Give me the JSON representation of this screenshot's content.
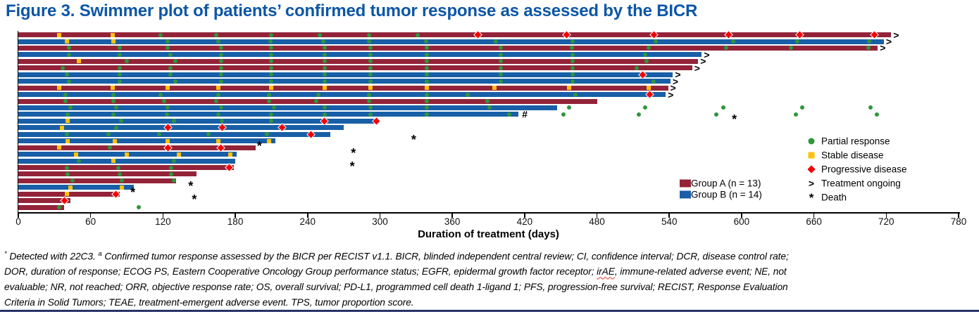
{
  "title": "Figure 3. Swimmer plot of patients’ confirmed tumor response as assessed by the BICR",
  "colors": {
    "title": "#0C56A6",
    "group_a": "#932339",
    "group_b": "#185FA7",
    "partial_response": "#2F963C",
    "stable_disease": "#FFC20E",
    "progressive_disease": "#F40000",
    "axis": "#000000",
    "bottom_rule": "#27316B"
  },
  "symbols": {
    "ongoing": ">",
    "death": "*",
    "hash": "#"
  },
  "legend": {
    "groups": [
      {
        "label": "Group A (n = 13)",
        "color_key": "group_a"
      },
      {
        "label": "Group B (n = 14)",
        "color_key": "group_b"
      }
    ],
    "markers": [
      {
        "label": "Partial response",
        "symbol": "circle"
      },
      {
        "label": "Stable disease",
        "symbol": "square"
      },
      {
        "label": "Progressive disease",
        "symbol": "diamond"
      },
      {
        "label": "Treatment ongoing",
        "symbol": "text",
        "glyph": ">"
      },
      {
        "label": "Death",
        "symbol": "text",
        "glyph": "*"
      }
    ]
  },
  "chart_data": {
    "type": "swimmer-bar",
    "xlabel": "Duration of treatment (days)",
    "xlim": [
      0,
      780
    ],
    "xticks": [
      0,
      60,
      120,
      180,
      240,
      300,
      360,
      420,
      480,
      540,
      600,
      660,
      720,
      780
    ],
    "marker_types": {
      "pr": "partial response (green circle)",
      "sd": "stable disease (yellow square)",
      "pd": "progressive disease (red diamond)"
    },
    "patients": [
      {
        "group": "A",
        "end": 724,
        "ongoing": true,
        "sd": [
          34,
          78
        ],
        "pr": [
          118,
          164,
          210,
          250,
          291,
          331
        ],
        "pd": [
          381,
          455,
          527,
          589,
          648,
          710
        ]
      },
      {
        "group": "B",
        "end": 718,
        "ongoing": true,
        "sd": [
          40,
          79
        ],
        "pr": [
          124,
          166,
          209,
          253,
          291,
          338,
          396,
          460,
          529,
          593,
          646,
          706
        ],
        "pd": []
      },
      {
        "group": "A",
        "end": 713,
        "ongoing": true,
        "sd": [],
        "pr": [
          42,
          84,
          124,
          168,
          210,
          254,
          292,
          339,
          400,
          459,
          523,
          587,
          641,
          705
        ],
        "pd": []
      },
      {
        "group": "B",
        "end": 567,
        "ongoing": true,
        "sd": [],
        "pr": [
          42,
          84,
          126,
          168,
          210,
          254,
          292,
          339,
          400,
          460,
          520
        ],
        "pd": []
      },
      {
        "group": "A",
        "end": 564,
        "ongoing": true,
        "sd": [
          50
        ],
        "pr": [
          90,
          130,
          168,
          210,
          254,
          292,
          339,
          400,
          460,
          521
        ],
        "pd": []
      },
      {
        "group": "A",
        "end": 559,
        "ongoing": true,
        "sd": [],
        "pr": [
          37,
          84,
          126,
          168,
          210,
          254,
          292,
          339,
          400,
          460,
          513
        ],
        "pd": []
      },
      {
        "group": "B",
        "end": 543,
        "ongoing": true,
        "sd": [],
        "pr": [
          40,
          84,
          126,
          168,
          210,
          254,
          292,
          339,
          400,
          460
        ],
        "pd": [
          518
        ]
      },
      {
        "group": "B",
        "end": 541,
        "ongoing": true,
        "sd": [],
        "pr": [
          42,
          84,
          130,
          168,
          210,
          254,
          292,
          339,
          400,
          460,
          527
        ],
        "pd": []
      },
      {
        "group": "A",
        "end": 539,
        "ongoing": true,
        "sd": [
          34,
          78,
          124,
          166,
          210,
          254,
          292,
          339,
          395,
          457,
          523
        ],
        "pr": [],
        "pd": []
      },
      {
        "group": "B",
        "end": 537,
        "ongoing": true,
        "sd": [],
        "pr": [
          39,
          79,
          118,
          166,
          208,
          249,
          291,
          339,
          373,
          462
        ],
        "pd": [
          524
        ]
      },
      {
        "group": "A",
        "end": 480,
        "ongoing": false,
        "sd": [],
        "pr": [
          39,
          79,
          121,
          164,
          208,
          247,
          291,
          339,
          389
        ],
        "pd": []
      },
      {
        "group": "B",
        "end": 447,
        "ongoing": false,
        "sd": [],
        "pr": [
          43,
          81,
          124,
          168,
          212,
          254,
          292,
          339,
          391
        ],
        "pd": [],
        "post_pr": [
          457,
          520,
          585,
          650,
          707
        ]
      },
      {
        "group": "B",
        "end": 415,
        "ongoing": false,
        "hash": true,
        "sd": [],
        "pr": [
          41,
          79,
          123,
          166,
          210,
          254,
          292,
          339,
          407
        ],
        "pd": [],
        "post_pr": [
          452,
          515,
          579,
          645,
          712
        ]
      },
      {
        "group": "B",
        "end": 298,
        "ongoing": false,
        "death": 594,
        "sd": [
          41
        ],
        "pr": [
          85,
          129,
          169,
          210
        ],
        "pd": [
          254,
          297
        ]
      },
      {
        "group": "B",
        "end": 270,
        "ongoing": false,
        "sd": [
          36
        ],
        "pr": [
          81
        ],
        "pd": [
          124,
          169,
          219
        ]
      },
      {
        "group": "B",
        "end": 259,
        "ongoing": false,
        "sd": [],
        "pr": [
          40,
          75,
          117,
          158,
          206
        ],
        "pd": [
          243
        ]
      },
      {
        "group": "B",
        "end": 213,
        "ongoing": false,
        "death": 328,
        "sd": [
          41,
          80,
          124,
          166,
          208
        ],
        "pr": [],
        "pd": []
      },
      {
        "group": "A",
        "end": 197,
        "ongoing": false,
        "death": 200,
        "sd": [
          34
        ],
        "pr": [
          76
        ],
        "pd": [
          124,
          168
        ]
      },
      {
        "group": "B",
        "end": 181,
        "ongoing": false,
        "death": 278,
        "sd": [
          48,
          90,
          133,
          176
        ],
        "pr": [],
        "pd": []
      },
      {
        "group": "B",
        "end": 180,
        "ongoing": false,
        "sd": [
          79
        ],
        "pr": [
          50,
          129
        ],
        "pd": []
      },
      {
        "group": "A",
        "end": 179,
        "ongoing": false,
        "death": 277,
        "sd": [],
        "pr": [
          40,
          83,
          127
        ],
        "pd": [
          175
        ]
      },
      {
        "group": "A",
        "end": 148,
        "ongoing": false,
        "sd": [],
        "pr": [
          41,
          84,
          127
        ],
        "pd": []
      },
      {
        "group": "A",
        "end": 131,
        "ongoing": false,
        "sd": [],
        "pr": [
          45,
          86,
          129
        ],
        "pd": []
      },
      {
        "group": "B",
        "end": 96,
        "ongoing": false,
        "death": 143,
        "sd": [
          43,
          86
        ],
        "pr": [],
        "pd": []
      },
      {
        "group": "A",
        "end": 84,
        "ongoing": false,
        "death": 95,
        "sd": [
          40
        ],
        "pr": [],
        "pd": [
          81
        ]
      },
      {
        "group": "A",
        "end": 43,
        "ongoing": false,
        "death": 146,
        "sd": [],
        "pr": [],
        "pd": [
          38
        ]
      },
      {
        "group": "A",
        "end": 38,
        "ongoing": false,
        "sd": [],
        "pr": [
          34
        ],
        "pd": [],
        "post_pr": [
          100
        ]
      }
    ]
  },
  "footnote": {
    "lines": [
      {
        "sup1": "*",
        "t1": " Detected with 22C3. ",
        "sup2": "a",
        "t2": " Confirmed tumor response assessed by the BICR per RECIST v1.1. BICR, blinded independent central review; CI, confidence interval; DCR, disease control rate;"
      },
      {
        "t1": "DOR, duration of response; ECOG PS, Eastern Cooperative Oncology Group performance status; EGFR, epidermal growth factor receptor; ",
        "irae": "irAE",
        "t2": ", immune-related adverse event; NE, not"
      },
      {
        "t1": "evaluable; NR, not reached; ORR, objective response rate; OS, overall survival; PD-L1, programmed cell death 1-ligand 1; PFS, progression-free survival; RECIST, Response Evaluation"
      },
      {
        "t1": "Criteria in Solid Tumors; TEAE, treatment-emergent adverse event. TPS, tumor proportion score."
      }
    ]
  }
}
